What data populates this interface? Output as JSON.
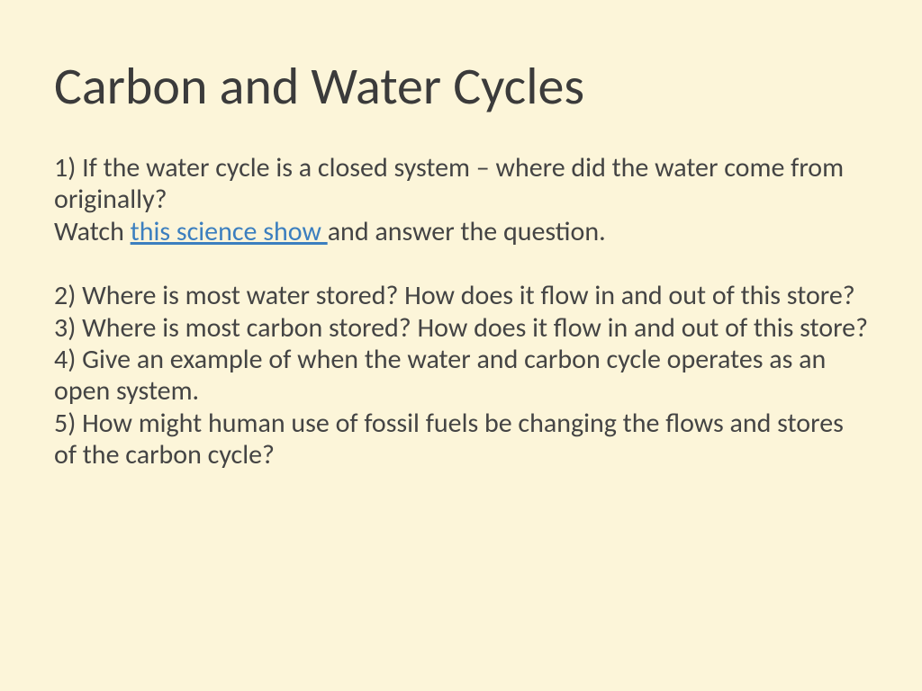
{
  "slide": {
    "background_color": "#fcf5d9",
    "text_color": "#444444",
    "title": {
      "text": "Carbon and Water Cycles",
      "font_size_pt": 44,
      "font_weight": 300,
      "color": "#3b3b3b"
    },
    "body": {
      "font_size_pt": 24,
      "link_color": "#3c7fbf",
      "q1_line1": "1) If the water cycle is a closed system – where did the water come from originally?",
      "q1_line2_pre": "Watch ",
      "q1_link_text": "this science show ",
      "q1_line2_post": "and answer the question.",
      "q2": "2) Where is most water stored? How does it flow in and out of this store?",
      "q3": "3) Where is most carbon stored? How does it flow in and out of this store?",
      "q4": "4) Give an example of when the water and carbon cycle operates as an open system.",
      "q5": "5) How might human use of fossil fuels be changing the flows and stores of the carbon cycle?"
    }
  }
}
